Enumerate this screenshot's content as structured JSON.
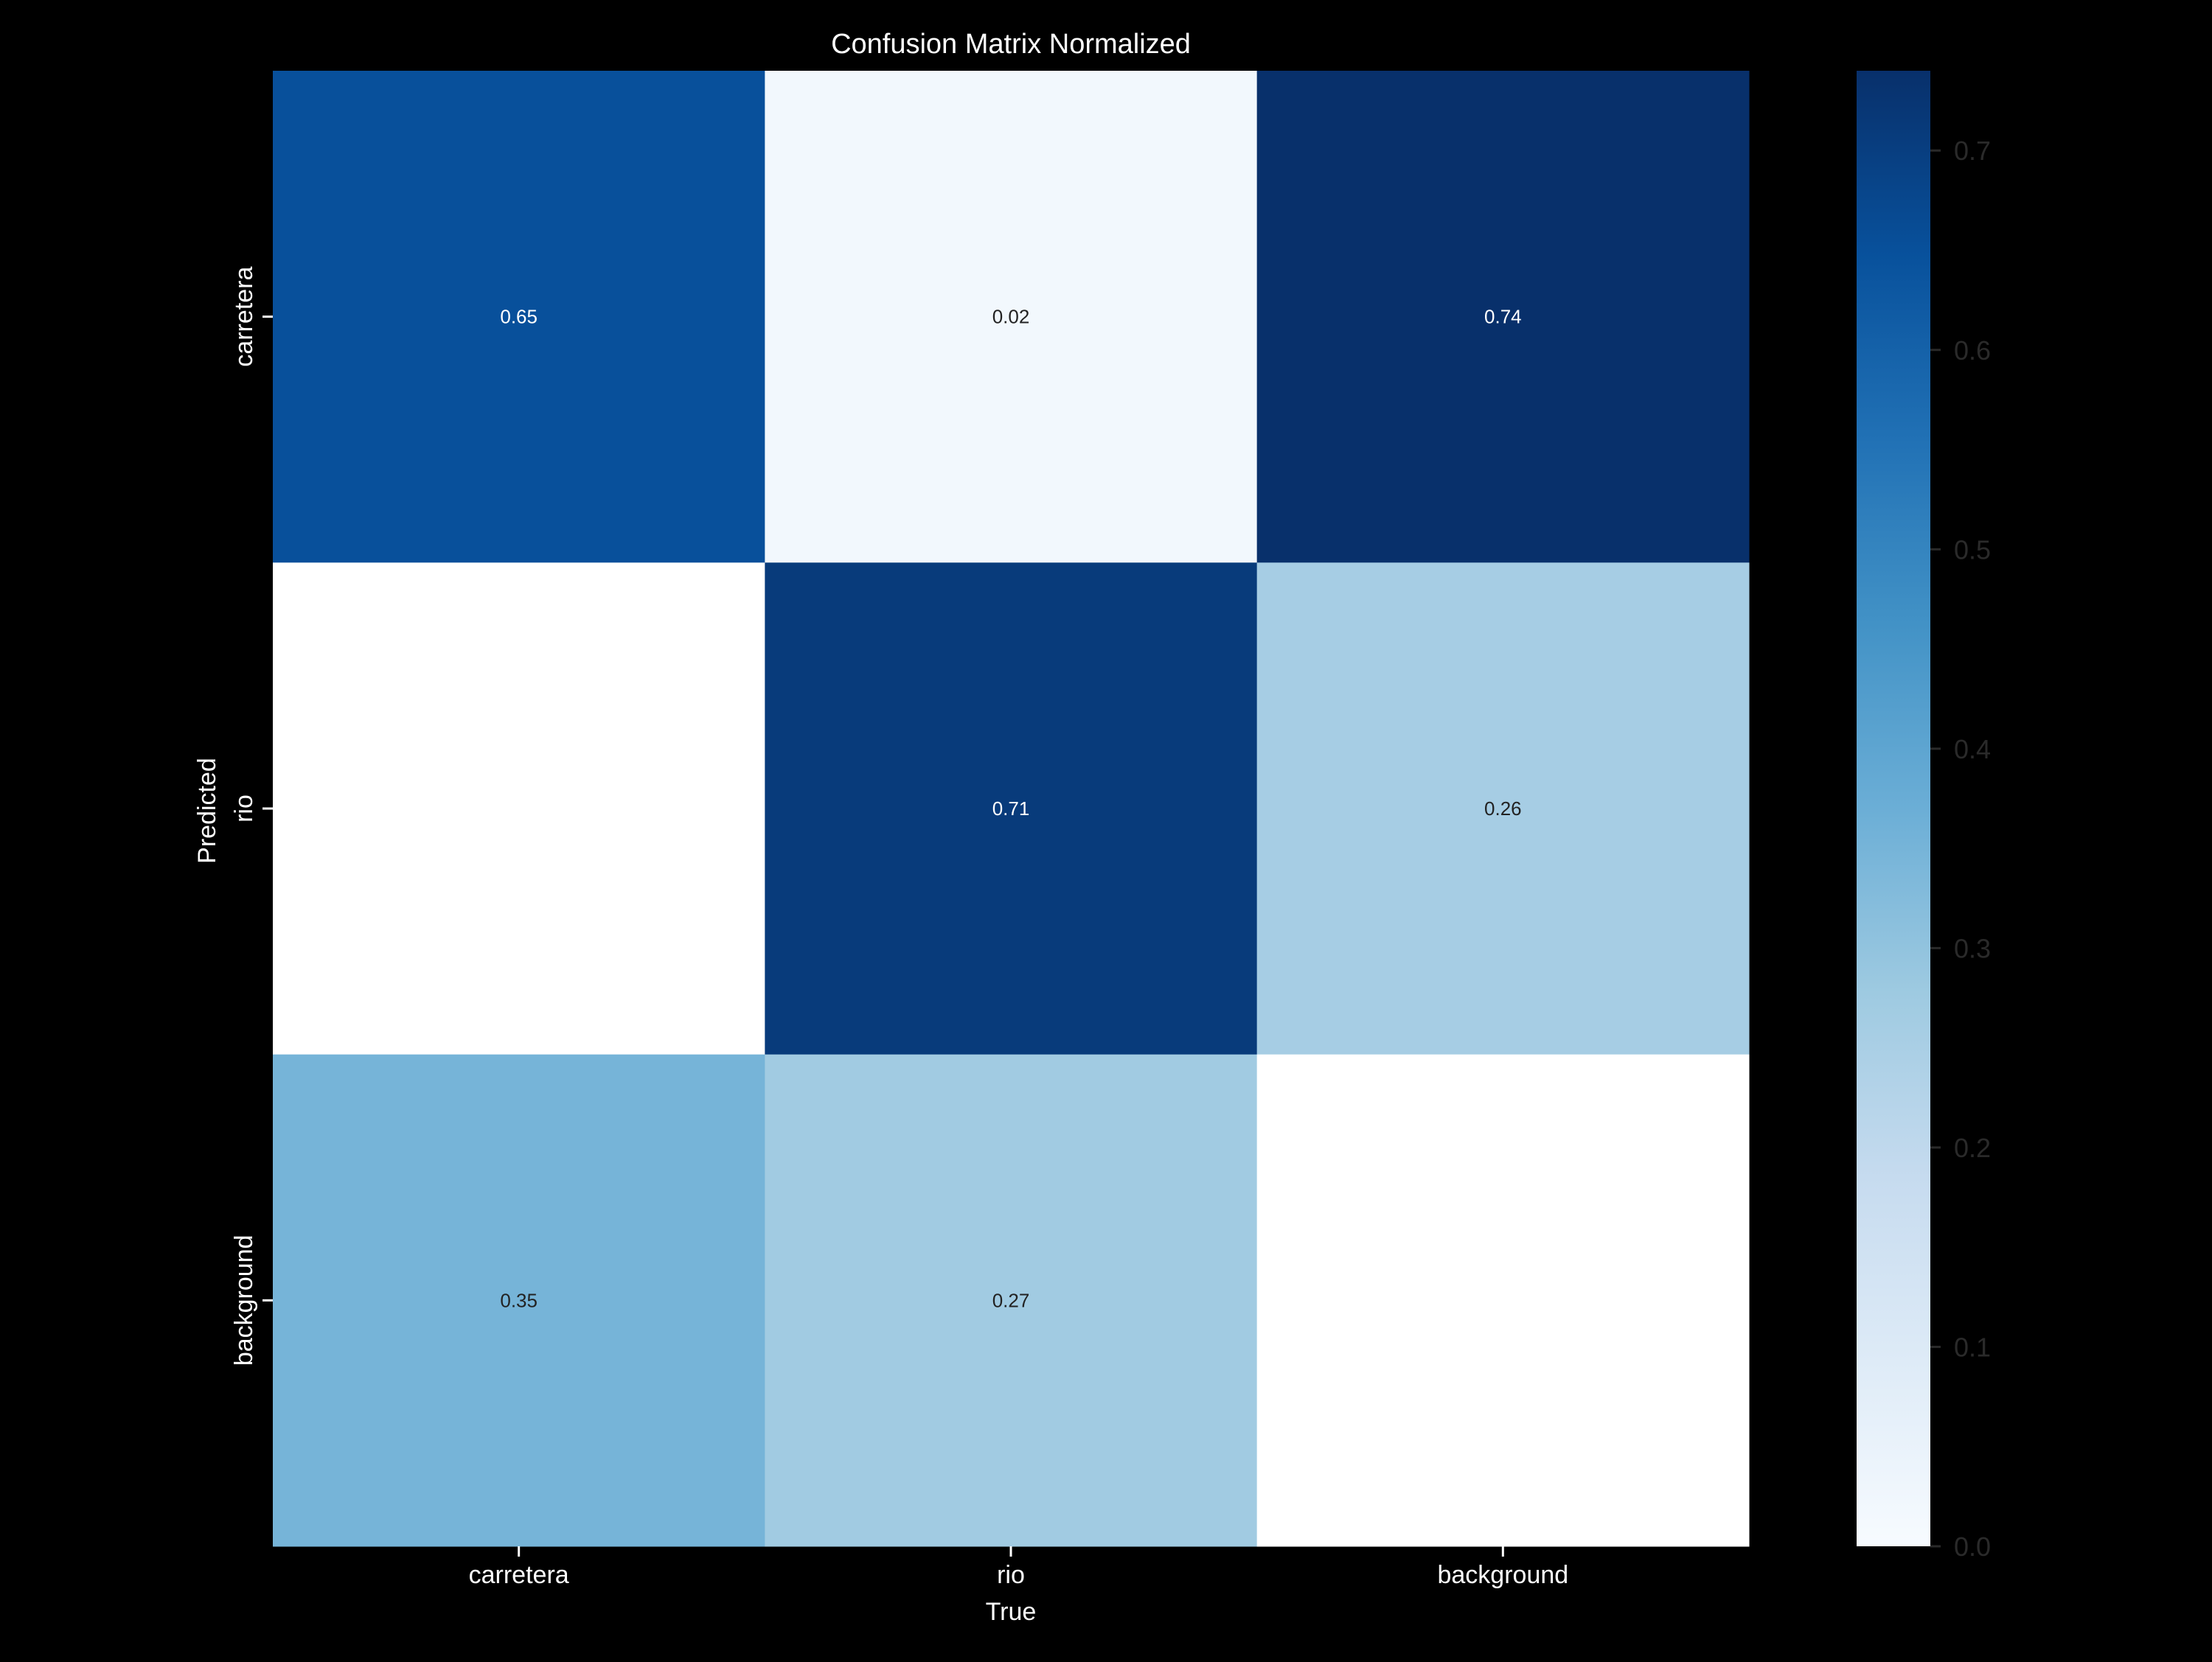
{
  "chart_data": {
    "type": "heatmap",
    "title": "Confusion Matrix Normalized",
    "xlabel": "True",
    "ylabel": "Predicted",
    "x_categories": [
      "carretera",
      "rio",
      "background"
    ],
    "y_categories": [
      "carretera",
      "rio",
      "background"
    ],
    "values": [
      [
        0.65,
        0.02,
        0.74
      ],
      [
        null,
        0.71,
        0.26
      ],
      [
        0.35,
        0.27,
        null
      ]
    ],
    "cell_labels": [
      [
        "0.65",
        "0.02",
        "0.74"
      ],
      [
        "",
        "0.71",
        "0.26"
      ],
      [
        "0.35",
        "0.27",
        ""
      ]
    ],
    "colormap": "Blues",
    "vmin": 0.0,
    "vmax": 0.74,
    "colorbar_ticks": [
      {
        "value": 0.0,
        "label": "0.0"
      },
      {
        "value": 0.1,
        "label": "0.1"
      },
      {
        "value": 0.2,
        "label": "0.2"
      },
      {
        "value": 0.3,
        "label": "0.3"
      },
      {
        "value": 0.4,
        "label": "0.4"
      },
      {
        "value": 0.5,
        "label": "0.5"
      },
      {
        "value": 0.6,
        "label": "0.6"
      },
      {
        "value": 0.7,
        "label": "0.7"
      }
    ],
    "colors": {
      "background": "#000000",
      "text": "#ffffff",
      "cell_text_dark": "#222222",
      "cell_text_light": "#ffffff",
      "colorbar_tick_label": "#2a2a2a",
      "missing_cell": "#ffffff"
    }
  }
}
